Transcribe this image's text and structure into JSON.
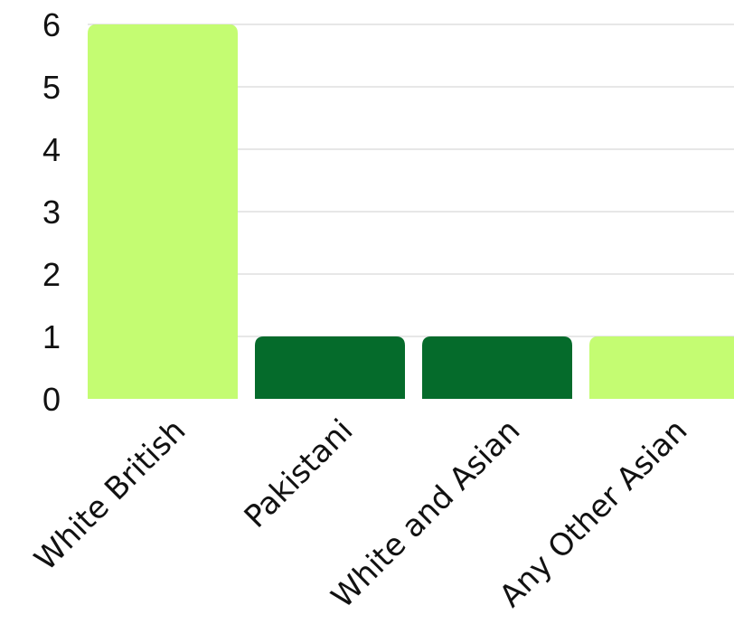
{
  "chart_data": {
    "type": "bar",
    "title": "",
    "xlabel": "",
    "ylabel": "",
    "categories": [
      "White British",
      "Pakistani",
      "White and Asian",
      "Any Other Asian"
    ],
    "values": [
      6,
      1,
      1,
      1
    ],
    "bar_colors": [
      "#c4fc72",
      "#056b2b",
      "#056b2b",
      "#c4fc72"
    ],
    "ylim": [
      0,
      6
    ],
    "yticks": [
      0,
      1,
      2,
      3,
      4,
      5,
      6
    ],
    "grid": true,
    "legend": "none"
  }
}
